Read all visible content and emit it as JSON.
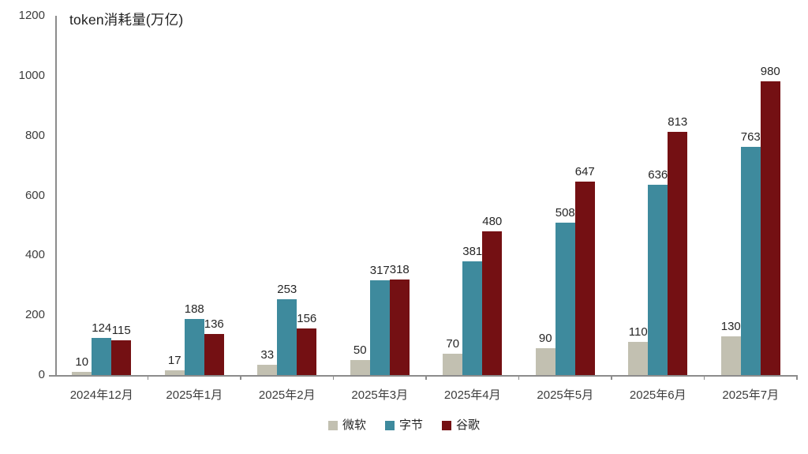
{
  "chart_data": {
    "type": "bar",
    "title": "token消耗量(万亿)",
    "categories": [
      "2024年12月",
      "2025年1月",
      "2025年2月",
      "2025年3月",
      "2025年4月",
      "2025年5月",
      "2025年6月",
      "2025年7月"
    ],
    "series": [
      {
        "id": "microsoft",
        "name": "微软",
        "color": "#C2C0B1",
        "values": [
          10,
          17,
          33,
          50,
          70,
          90,
          110,
          130
        ]
      },
      {
        "id": "bytedance",
        "name": "字节",
        "color": "#3E8A9D",
        "values": [
          124,
          188,
          253,
          317,
          381,
          508,
          636,
          763
        ]
      },
      {
        "id": "google",
        "name": "谷歌",
        "color": "#741013",
        "values": [
          115,
          136,
          156,
          318,
          480,
          647,
          813,
          980
        ]
      }
    ],
    "ylim": [
      0,
      1200
    ],
    "y_ticks": [
      0,
      200,
      400,
      600,
      800,
      1000,
      1200
    ],
    "grid": false,
    "legend_position": "bottom",
    "value_labels": true
  },
  "colors": {
    "axis": "#8C8C8C",
    "label_text": "#262626",
    "tick_text": "#3D3D3D",
    "background": "#FFFFFF"
  }
}
